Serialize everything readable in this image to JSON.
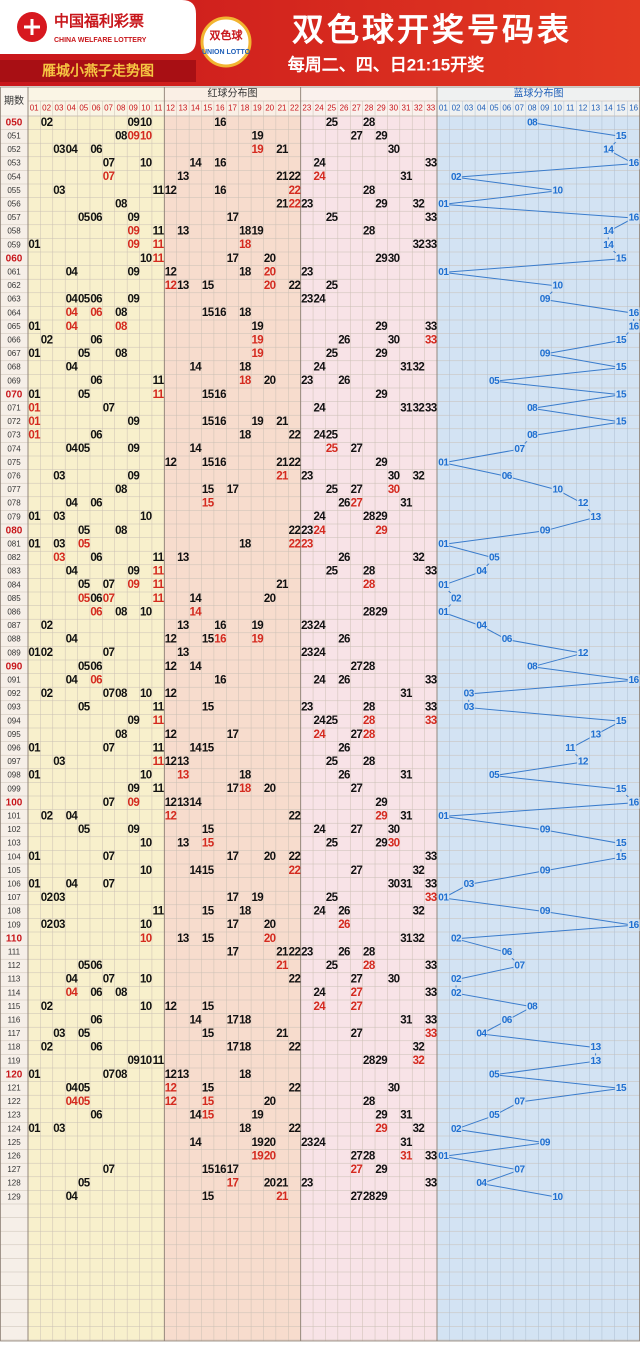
{
  "header": {
    "logo_cn": "中国福利彩票",
    "logo_en": "CHINA WELFARE LOTTERY",
    "brand": "雁城小燕子走势图",
    "badge_cn": "双色球",
    "badge_en": "UNION LOTTO",
    "title": "双色球开奖号码表",
    "subtitle": "每周二、四、日21:15开奖"
  },
  "table": {
    "period_label": "期数",
    "red_label": "红球分布图",
    "blue_label": "蓝球分布图",
    "red_columns": [
      "01",
      "02",
      "03",
      "04",
      "05",
      "06",
      "07",
      "08",
      "09",
      "10",
      "11",
      "12",
      "13",
      "14",
      "15",
      "16",
      "17",
      "18",
      "19",
      "20",
      "21",
      "22",
      "23",
      "24",
      "25",
      "26",
      "27",
      "28",
      "29",
      "30",
      "31",
      "32",
      "33"
    ],
    "blue_columns": [
      "01",
      "02",
      "03",
      "04",
      "05",
      "06",
      "07",
      "08",
      "09",
      "10",
      "11",
      "12",
      "13",
      "14",
      "15",
      "16"
    ],
    "rows": [
      {
        "period": "050",
        "red": [
          "02",
          "09",
          "10",
          "16",
          "25",
          "28"
        ],
        "blue": "08"
      },
      {
        "period": "051",
        "red": [
          "08",
          "09",
          "10",
          "19",
          "27",
          "29"
        ],
        "blue": "15"
      },
      {
        "period": "052",
        "red": [
          "03",
          "04",
          "06",
          "19",
          "21",
          "30"
        ],
        "blue": "14"
      },
      {
        "period": "053",
        "red": [
          "07",
          "10",
          "14",
          "16",
          "24",
          "33"
        ],
        "blue": "16"
      },
      {
        "period": "054",
        "red": [
          "07",
          "13",
          "21",
          "22",
          "24",
          "31"
        ],
        "blue": "02"
      },
      {
        "period": "055",
        "red": [
          "03",
          "11",
          "12",
          "16",
          "22",
          "28"
        ],
        "blue": "10"
      },
      {
        "period": "056",
        "red": [
          "08",
          "21",
          "22",
          "23",
          "29",
          "32"
        ],
        "blue": "01"
      },
      {
        "period": "057",
        "red": [
          "05",
          "06",
          "09",
          "17",
          "25",
          "33"
        ],
        "blue": "16"
      },
      {
        "period": "058",
        "red": [
          "09",
          "11",
          "13",
          "18",
          "19",
          "28"
        ],
        "blue": "14"
      },
      {
        "period": "059",
        "red": [
          "01",
          "09",
          "11",
          "18",
          "32",
          "33"
        ],
        "blue": "14"
      },
      {
        "period": "060",
        "red": [
          "10",
          "11",
          "17",
          "20",
          "29",
          "30"
        ],
        "blue": "15"
      },
      {
        "period": "061",
        "red": [
          "04",
          "09",
          "12",
          "18",
          "20",
          "23"
        ],
        "blue": "01"
      },
      {
        "period": "062",
        "red": [
          "12",
          "13",
          "15",
          "20",
          "22",
          "25"
        ],
        "blue": "10"
      },
      {
        "period": "063",
        "red": [
          "04",
          "05",
          "06",
          "09",
          "23",
          "24"
        ],
        "blue": "09"
      },
      {
        "period": "064",
        "red": [
          "04",
          "06",
          "08",
          "15",
          "16",
          "18"
        ],
        "blue": "16"
      },
      {
        "period": "065",
        "red": [
          "01",
          "04",
          "08",
          "19",
          "29",
          "33"
        ],
        "blue": "16"
      },
      {
        "period": "066",
        "red": [
          "02",
          "06",
          "19",
          "26",
          "30",
          "33"
        ],
        "blue": "15"
      },
      {
        "period": "067",
        "red": [
          "01",
          "05",
          "08",
          "19",
          "25",
          "29"
        ],
        "blue": "09"
      },
      {
        "period": "068",
        "red": [
          "04",
          "14",
          "18",
          "24",
          "31",
          "32"
        ],
        "blue": "15"
      },
      {
        "period": "069",
        "red": [
          "06",
          "11",
          "18",
          "20",
          "23",
          "26"
        ],
        "blue": "05"
      },
      {
        "period": "070",
        "red": [
          "01",
          "05",
          "11",
          "15",
          "16",
          "29"
        ],
        "blue": "15"
      },
      {
        "period": "071",
        "red": [
          "01",
          "07",
          "24",
          "31",
          "32",
          "33"
        ],
        "blue": "08"
      },
      {
        "period": "072",
        "red": [
          "01",
          "09",
          "15",
          "16",
          "19",
          "21"
        ],
        "blue": "15"
      },
      {
        "period": "073",
        "red": [
          "01",
          "06",
          "18",
          "22",
          "24",
          "25"
        ],
        "blue": "08"
      },
      {
        "period": "074",
        "red": [
          "04",
          "05",
          "09",
          "14",
          "25",
          "27"
        ],
        "blue": "07"
      },
      {
        "period": "075",
        "red": [
          "12",
          "15",
          "16",
          "21",
          "22",
          "29"
        ],
        "blue": "01"
      },
      {
        "period": "076",
        "red": [
          "03",
          "09",
          "21",
          "23",
          "30",
          "32"
        ],
        "blue": "06"
      },
      {
        "period": "077",
        "red": [
          "08",
          "15",
          "17",
          "25",
          "27",
          "30"
        ],
        "blue": "10"
      },
      {
        "period": "078",
        "red": [
          "04",
          "06",
          "15",
          "26",
          "27",
          "31"
        ],
        "blue": "12"
      },
      {
        "period": "079",
        "red": [
          "01",
          "03",
          "10",
          "24",
          "28",
          "29"
        ],
        "blue": "13"
      },
      {
        "period": "080",
        "red": [
          "05",
          "08",
          "22",
          "23",
          "24",
          "29"
        ],
        "blue": "09"
      },
      {
        "period": "081",
        "red": [
          "01",
          "03",
          "05",
          "18",
          "22",
          "23"
        ],
        "blue": "01"
      },
      {
        "period": "082",
        "red": [
          "03",
          "06",
          "11",
          "13",
          "26",
          "32"
        ],
        "blue": "05"
      },
      {
        "period": "083",
        "red": [
          "04",
          "09",
          "11",
          "25",
          "28",
          "33"
        ],
        "blue": "04"
      },
      {
        "period": "084",
        "red": [
          "05",
          "07",
          "09",
          "11",
          "21",
          "28"
        ],
        "blue": "01"
      },
      {
        "period": "085",
        "red": [
          "05",
          "06",
          "07",
          "11",
          "14",
          "20"
        ],
        "blue": "02"
      },
      {
        "period": "086",
        "red": [
          "06",
          "08",
          "10",
          "14",
          "28",
          "29"
        ],
        "blue": "01"
      },
      {
        "period": "087",
        "red": [
          "02",
          "13",
          "16",
          "19",
          "23",
          "24"
        ],
        "blue": "04"
      },
      {
        "period": "088",
        "red": [
          "04",
          "12",
          "15",
          "16",
          "19",
          "26"
        ],
        "blue": "06"
      },
      {
        "period": "089",
        "red": [
          "01",
          "02",
          "07",
          "13",
          "23",
          "24"
        ],
        "blue": "12"
      },
      {
        "period": "090",
        "red": [
          "05",
          "06",
          "12",
          "14",
          "27",
          "28"
        ],
        "blue": "08"
      },
      {
        "period": "091",
        "red": [
          "04",
          "06",
          "16",
          "24",
          "26",
          "33"
        ],
        "blue": "16"
      },
      {
        "period": "092",
        "red": [
          "02",
          "07",
          "08",
          "10",
          "12",
          "31"
        ],
        "blue": "03"
      },
      {
        "period": "093",
        "red": [
          "05",
          "11",
          "15",
          "23",
          "28",
          "33"
        ],
        "blue": "03"
      },
      {
        "period": "094",
        "red": [
          "09",
          "11",
          "24",
          "25",
          "28",
          "33"
        ],
        "blue": "15"
      },
      {
        "period": "095",
        "red": [
          "08",
          "12",
          "17",
          "24",
          "27",
          "28"
        ],
        "blue": "13"
      },
      {
        "period": "096",
        "red": [
          "01",
          "07",
          "11",
          "14",
          "15",
          "26"
        ],
        "blue": "11"
      },
      {
        "period": "097",
        "red": [
          "03",
          "11",
          "12",
          "13",
          "25",
          "28"
        ],
        "blue": "12"
      },
      {
        "period": "098",
        "red": [
          "01",
          "10",
          "13",
          "18",
          "26",
          "31"
        ],
        "blue": "05"
      },
      {
        "period": "099",
        "red": [
          "09",
          "11",
          "17",
          "18",
          "20",
          "27"
        ],
        "blue": "15"
      },
      {
        "period": "100",
        "red": [
          "07",
          "09",
          "12",
          "13",
          "14",
          "29"
        ],
        "blue": "16"
      },
      {
        "period": "101",
        "red": [
          "02",
          "04",
          "12",
          "22",
          "29",
          "31"
        ],
        "blue": "01"
      },
      {
        "period": "102",
        "red": [
          "05",
          "09",
          "15",
          "24",
          "27",
          "30"
        ],
        "blue": "09"
      },
      {
        "period": "103",
        "red": [
          "10",
          "13",
          "15",
          "25",
          "29",
          "30"
        ],
        "blue": "15"
      },
      {
        "period": "104",
        "red": [
          "01",
          "07",
          "17",
          "20",
          "22",
          "33"
        ],
        "blue": "15"
      },
      {
        "period": "105",
        "red": [
          "10",
          "14",
          "15",
          "22",
          "27",
          "32"
        ],
        "blue": "09"
      },
      {
        "period": "106",
        "red": [
          "01",
          "04",
          "07",
          "30",
          "31",
          "33"
        ],
        "blue": "03"
      },
      {
        "period": "107",
        "red": [
          "02",
          "03",
          "17",
          "19",
          "25",
          "33"
        ],
        "blue": "01"
      },
      {
        "period": "108",
        "red": [
          "11",
          "15",
          "18",
          "24",
          "26",
          "32"
        ],
        "blue": "09"
      },
      {
        "period": "109",
        "red": [
          "02",
          "03",
          "10",
          "17",
          "20",
          "26"
        ],
        "blue": "16"
      },
      {
        "period": "110",
        "red": [
          "10",
          "13",
          "15",
          "20",
          "31",
          "32"
        ],
        "blue": "02"
      },
      {
        "period": "111",
        "red": [
          "17",
          "21",
          "22",
          "23",
          "26",
          "28"
        ],
        "blue": "06"
      },
      {
        "period": "112",
        "red": [
          "05",
          "06",
          "21",
          "25",
          "28",
          "33"
        ],
        "blue": "07"
      },
      {
        "period": "113",
        "red": [
          "04",
          "07",
          "10",
          "22",
          "27",
          "30"
        ],
        "blue": "02"
      },
      {
        "period": "114",
        "red": [
          "04",
          "06",
          "08",
          "24",
          "27",
          "33"
        ],
        "blue": "02"
      },
      {
        "period": "115",
        "red": [
          "02",
          "10",
          "12",
          "15",
          "24",
          "27"
        ],
        "blue": "08"
      },
      {
        "period": "116",
        "red": [
          "06",
          "14",
          "17",
          "18",
          "31",
          "33"
        ],
        "blue": "06"
      },
      {
        "period": "117",
        "red": [
          "03",
          "05",
          "15",
          "21",
          "27",
          "33"
        ],
        "blue": "04"
      },
      {
        "period": "118",
        "red": [
          "02",
          "06",
          "17",
          "18",
          "22",
          "32"
        ],
        "blue": "13"
      },
      {
        "period": "119",
        "red": [
          "09",
          "10",
          "11",
          "28",
          "29",
          "32"
        ],
        "blue": "13"
      },
      {
        "period": "120",
        "red": [
          "01",
          "07",
          "08",
          "12",
          "13",
          "18"
        ],
        "blue": "05"
      },
      {
        "period": "121",
        "red": [
          "04",
          "05",
          "12",
          "15",
          "22",
          "30"
        ],
        "blue": "15"
      },
      {
        "period": "122",
        "red": [
          "04",
          "05",
          "12",
          "15",
          "20",
          "28"
        ],
        "blue": "07"
      },
      {
        "period": "123",
        "red": [
          "06",
          "14",
          "15",
          "19",
          "29",
          "31"
        ],
        "blue": "05"
      },
      {
        "period": "124",
        "red": [
          "01",
          "03",
          "18",
          "22",
          "29",
          "32"
        ],
        "blue": "02"
      },
      {
        "period": "125",
        "red": [
          "14",
          "19",
          "20",
          "23",
          "24",
          "31"
        ],
        "blue": "09"
      },
      {
        "period": "126",
        "red": [
          "19",
          "20",
          "27",
          "28",
          "31",
          "33"
        ],
        "blue": "01"
      },
      {
        "period": "127",
        "red": [
          "07",
          "15",
          "16",
          "17",
          "27",
          "29"
        ],
        "blue": "07"
      },
      {
        "period": "128",
        "red": [
          "05",
          "17",
          "20",
          "21",
          "23",
          "33"
        ],
        "blue": "04"
      },
      {
        "period": "129",
        "red": [
          "04",
          "15",
          "21",
          "27",
          "28",
          "29"
        ],
        "blue": "10"
      }
    ]
  }
}
